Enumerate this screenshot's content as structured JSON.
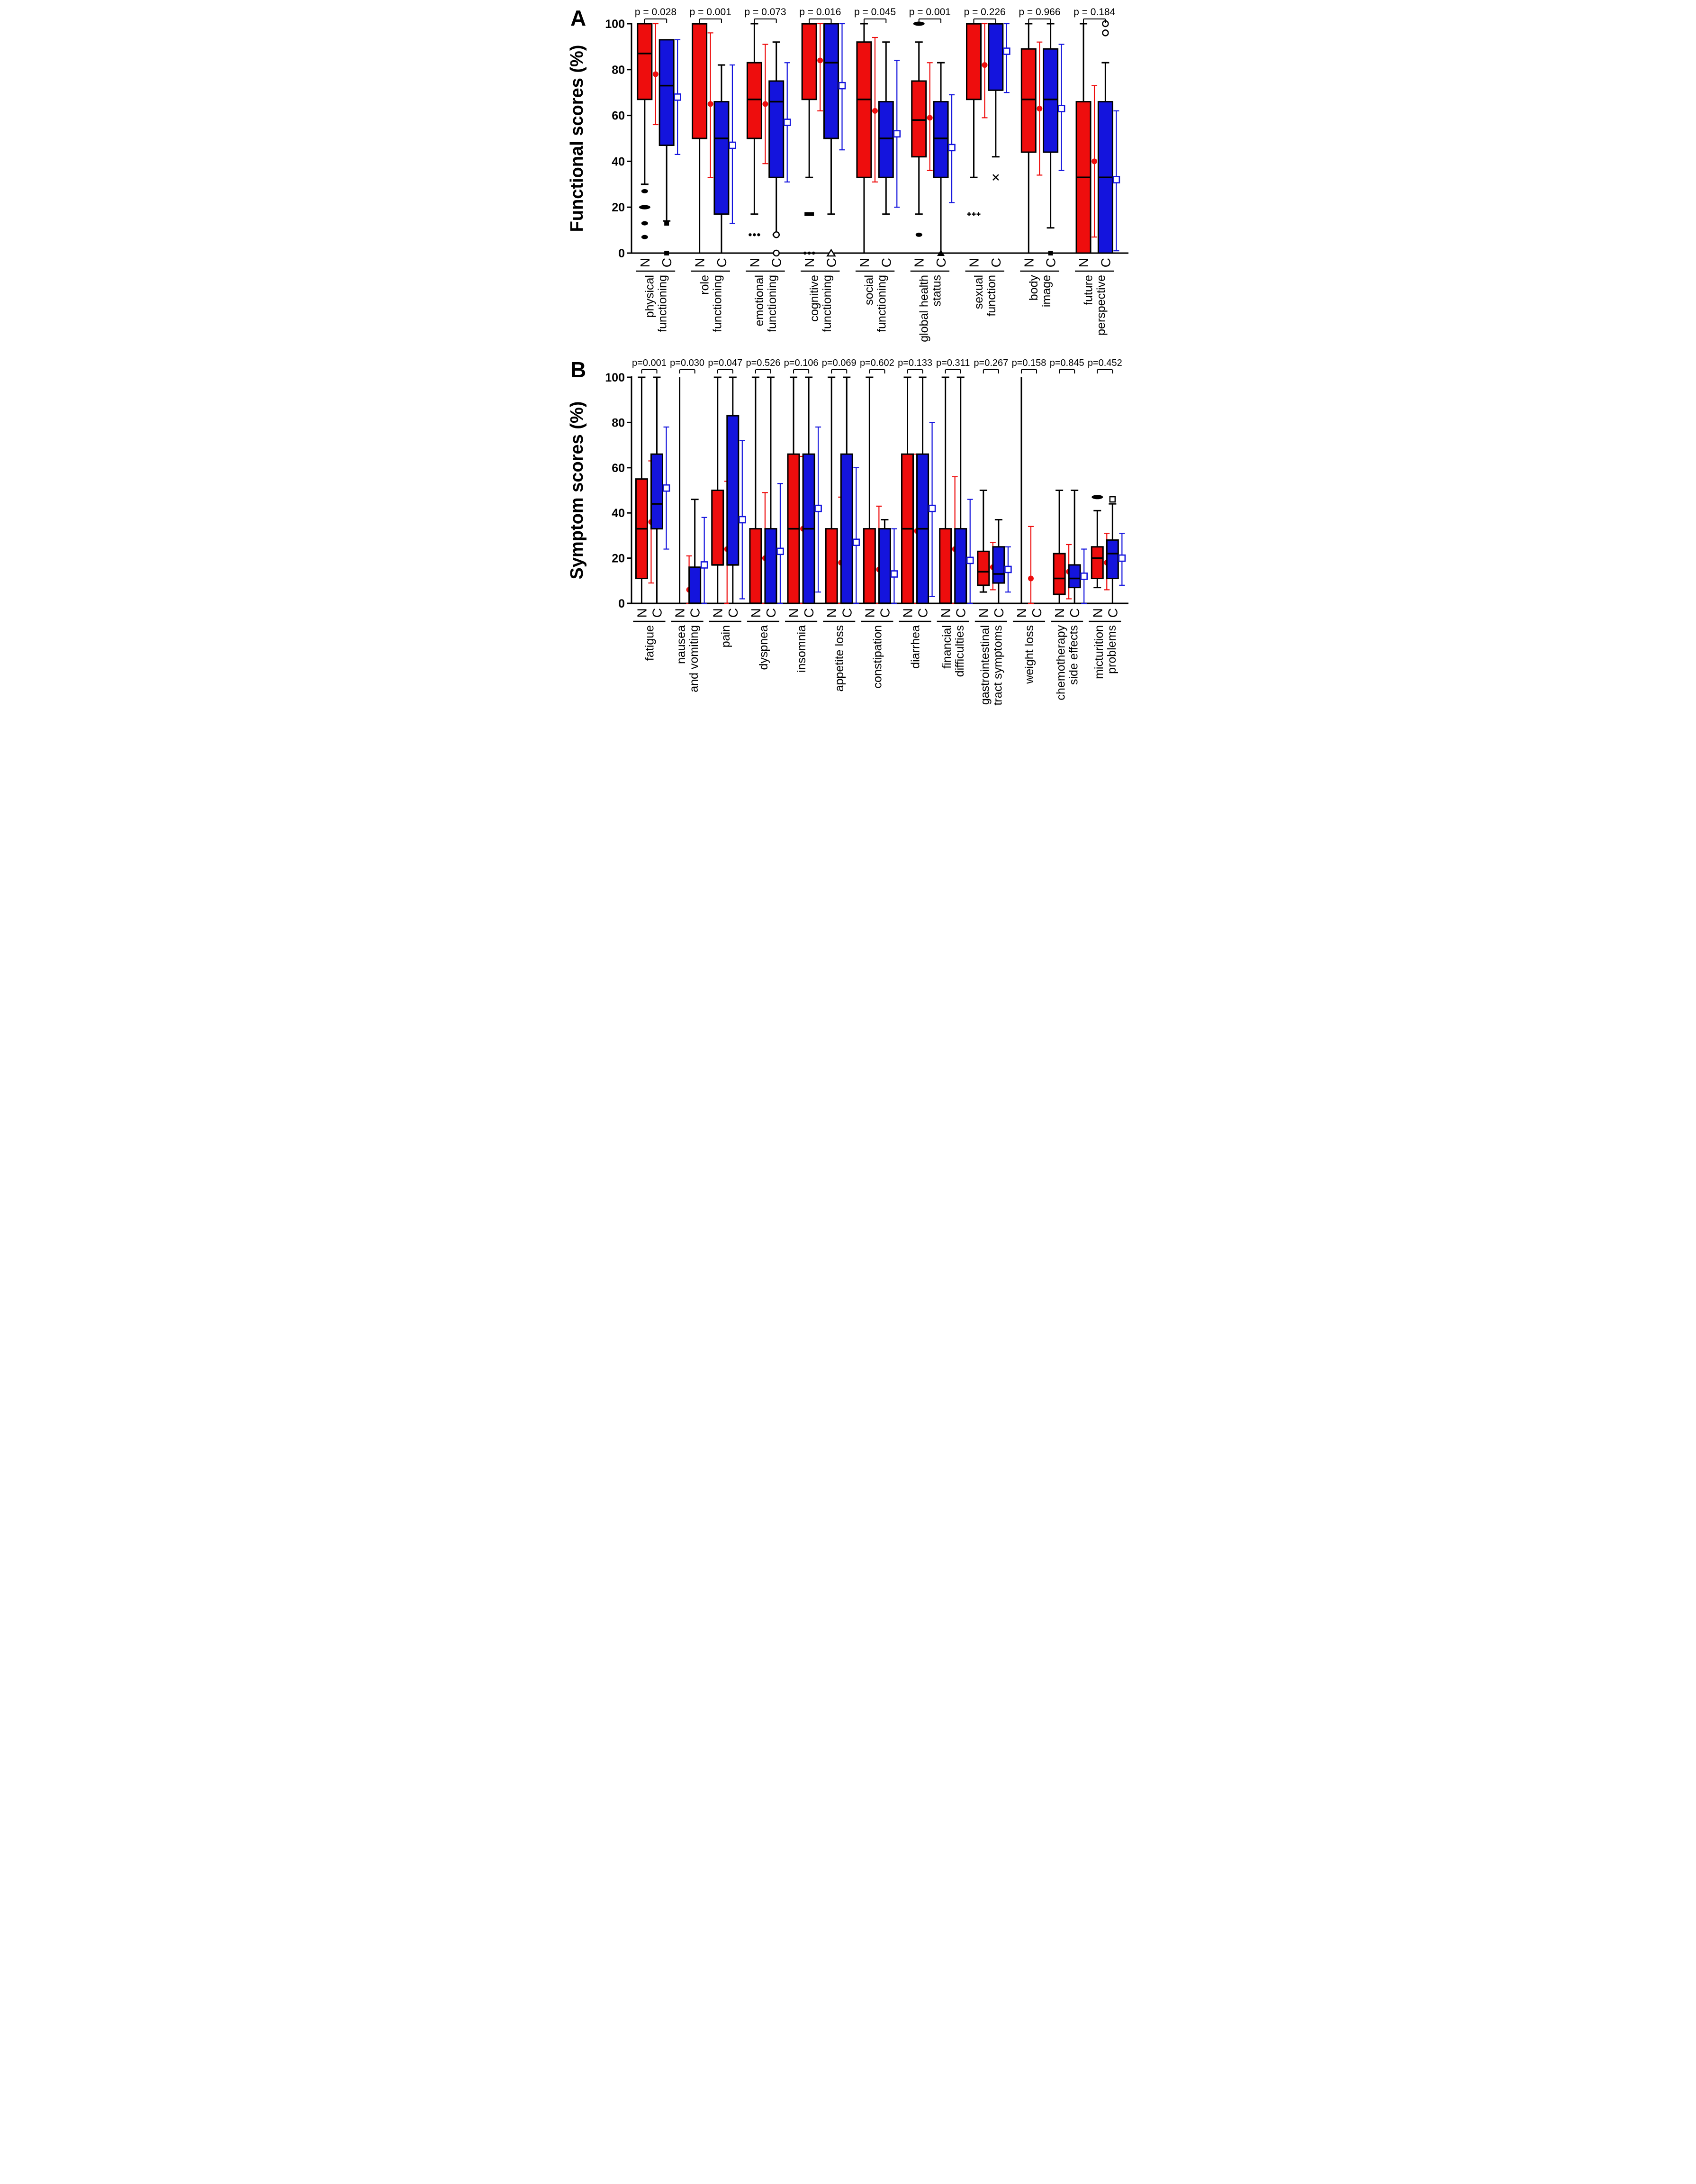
{
  "figure": {
    "background": "#ffffff",
    "panel_a_label": "A",
    "panel_b_label": "B"
  },
  "chart_data": [
    {
      "type": "box",
      "panel": "A",
      "ylabel": "Functional scores (%)",
      "ylim": [
        0,
        100
      ],
      "yticks": [
        0,
        20,
        40,
        60,
        80,
        100
      ],
      "series_labels": [
        "N",
        "C"
      ],
      "colors": {
        "N": "#ee0d0d",
        "C": "#1414dd"
      },
      "legend": "N = red filled box, mean shown as red filled circle with SD bar; C = blue filled box, mean shown as blue open square with SD bar",
      "groups": [
        {
          "name": [
            "physical",
            "functioning"
          ],
          "p": "p = 0.028",
          "N": {
            "lo": 30,
            "q1": 67,
            "med": 87,
            "q3": 100,
            "hi": 100,
            "mean": 78,
            "err": [
              56,
              100
            ],
            "out": [
              [
                27,
                "oval"
              ],
              [
                20,
                "ovalw"
              ],
              [
                13,
                "oval"
              ],
              [
                7,
                "oval"
              ]
            ]
          },
          "C": {
            "lo": 14,
            "q1": 47,
            "med": 73,
            "q3": 93,
            "hi": 93,
            "mean": 68,
            "err": [
              43,
              93
            ],
            "out": [
              [
                13,
                "fsq"
              ],
              [
                0,
                "fsq"
              ]
            ]
          }
        },
        {
          "name": [
            "role",
            "functioning"
          ],
          "p": "p = 0.001",
          "N": {
            "lo": 0,
            "q1": 50,
            "med": 100,
            "q3": 100,
            "hi": 100,
            "mean": 65,
            "err": [
              33,
              96
            ],
            "out": []
          },
          "C": {
            "lo": 0,
            "q1": 17,
            "med": 50,
            "q3": 66,
            "hi": 82,
            "mean": 47,
            "err": [
              13,
              82
            ],
            "out": []
          }
        },
        {
          "name": [
            "emotional",
            "functioning"
          ],
          "p": "p = 0.073",
          "N": {
            "lo": 17,
            "q1": 50,
            "med": 67,
            "q3": 83,
            "hi": 100,
            "mean": 65,
            "err": [
              39,
              91
            ],
            "out": [
              [
                8,
                "dots3"
              ]
            ]
          },
          "C": {
            "lo": 8,
            "q1": 33,
            "med": 66,
            "q3": 75,
            "hi": 92,
            "mean": 57,
            "err": [
              31,
              83
            ],
            "out": [
              [
                8,
                "ocirc"
              ],
              [
                0,
                "ocirc"
              ]
            ]
          }
        },
        {
          "name": [
            "cognitive",
            "functioning"
          ],
          "p": "p = 0.016",
          "N": {
            "lo": 33,
            "q1": 67,
            "med": 100,
            "q3": 100,
            "hi": 100,
            "mean": 84,
            "err": [
              62,
              100
            ],
            "out": [
              [
                17,
                "fsqw"
              ],
              [
                0,
                "dots3"
              ]
            ]
          },
          "C": {
            "lo": 17,
            "q1": 50,
            "med": 83,
            "q3": 100,
            "hi": 100,
            "mean": 73,
            "err": [
              45,
              100
            ],
            "out": [
              [
                0,
                "otri"
              ]
            ]
          }
        },
        {
          "name": [
            "social",
            "functioning"
          ],
          "p": "p = 0.045",
          "N": {
            "lo": 0,
            "q1": 33,
            "med": 67,
            "q3": 92,
            "hi": 100,
            "mean": 62,
            "err": [
              31,
              94
            ],
            "out": []
          },
          "C": {
            "lo": 17,
            "q1": 33,
            "med": 50,
            "q3": 66,
            "hi": 92,
            "mean": 52,
            "err": [
              20,
              84
            ],
            "out": []
          }
        },
        {
          "name": [
            "global health",
            "status"
          ],
          "p": "p = 0.001",
          "N": {
            "lo": 17,
            "q1": 42,
            "med": 58,
            "q3": 75,
            "hi": 92,
            "mean": 59,
            "err": [
              36,
              83
            ],
            "out": [
              [
                100,
                "ovalw"
              ],
              [
                8,
                "oval"
              ]
            ]
          },
          "C": {
            "lo": 0,
            "q1": 33,
            "med": 50,
            "q3": 66,
            "hi": 83,
            "mean": 46,
            "err": [
              22,
              69
            ],
            "out": [
              [
                0,
                "ftri"
              ]
            ]
          }
        },
        {
          "name": [
            "sexual",
            "function"
          ],
          "p": "p = 0.226",
          "N": {
            "lo": 33,
            "q1": 67,
            "med": 100,
            "q3": 100,
            "hi": 100,
            "mean": 82,
            "err": [
              59,
              100
            ],
            "out": [
              [
                17,
                "plus3"
              ]
            ]
          },
          "C": {
            "lo": 42,
            "q1": 71,
            "med": 100,
            "q3": 100,
            "hi": 100,
            "mean": 88,
            "err": [
              70,
              100
            ],
            "out": [
              [
                33,
                "x"
              ]
            ]
          }
        },
        {
          "name": [
            "body",
            "image"
          ],
          "p": "p = 0.966",
          "N": {
            "lo": 0,
            "q1": 44,
            "med": 67,
            "q3": 89,
            "hi": 100,
            "mean": 63,
            "err": [
              34,
              92
            ],
            "out": []
          },
          "C": {
            "lo": 11,
            "q1": 44,
            "med": 67,
            "q3": 89,
            "hi": 100,
            "mean": 63,
            "err": [
              36,
              91
            ],
            "out": [
              [
                0,
                "fsq"
              ]
            ]
          }
        },
        {
          "name": [
            "future",
            "perspective"
          ],
          "p": "p = 0.184",
          "N": {
            "lo": 0,
            "q1": 0,
            "med": 33,
            "q3": 66,
            "hi": 100,
            "mean": 40,
            "err": [
              7,
              73
            ],
            "out": []
          },
          "C": {
            "lo": 0,
            "q1": 0,
            "med": 33,
            "q3": 66,
            "hi": 83,
            "mean": 32,
            "err": [
              1,
              62
            ],
            "out": [
              [
                100,
                "ocirc"
              ],
              [
                96,
                "ocirc"
              ]
            ]
          }
        }
      ]
    },
    {
      "type": "box",
      "panel": "B",
      "ylabel": "Symptom scores (%)",
      "ylim": [
        0,
        100
      ],
      "yticks": [
        0,
        20,
        40,
        60,
        80,
        100
      ],
      "series_labels": [
        "N",
        "C"
      ],
      "colors": {
        "N": "#ee0d0d",
        "C": "#1414dd"
      },
      "legend": "N = red filled box, mean shown as red filled circle with SD bar; C = blue filled box, mean shown as blue open square with SD bar",
      "groups": [
        {
          "name": [
            "fatigue"
          ],
          "p": "p=0.001",
          "N": {
            "lo": 0,
            "q1": 11,
            "med": 33,
            "q3": 55,
            "hi": 100,
            "mean": 36,
            "err": [
              9,
              63
            ],
            "out": []
          },
          "C": {
            "lo": 0,
            "q1": 33,
            "med": 44,
            "q3": 66,
            "hi": 100,
            "mean": 51,
            "err": [
              24,
              78
            ],
            "out": []
          }
        },
        {
          "name": [
            "nausea",
            "and vomiting"
          ],
          "p": "p=0.030",
          "N": {
            "lo": 0,
            "q1": 0,
            "med": 0,
            "q3": 0,
            "hi": 100,
            "mean": 6,
            "err": [
              0,
              21
            ],
            "out": []
          },
          "C": {
            "lo": 0,
            "q1": 0,
            "med": 0,
            "q3": 16,
            "hi": 46,
            "mean": 17,
            "err": [
              0,
              38
            ],
            "out": []
          }
        },
        {
          "name": [
            "pain"
          ],
          "p": "p=0.047",
          "N": {
            "lo": 0,
            "q1": 17,
            "med": 17,
            "q3": 50,
            "hi": 100,
            "mean": 24,
            "err": [
              0,
              54
            ],
            "out": []
          },
          "C": {
            "lo": 0,
            "q1": 17,
            "med": 17,
            "q3": 83,
            "hi": 100,
            "mean": 37,
            "err": [
              2,
              72
            ],
            "out": []
          }
        },
        {
          "name": [
            "dyspnea"
          ],
          "p": "p=0.526",
          "N": {
            "lo": 0,
            "q1": 0,
            "med": 0,
            "q3": 33,
            "hi": 100,
            "mean": 20,
            "err": [
              0,
              49
            ],
            "out": []
          },
          "C": {
            "lo": 0,
            "q1": 0,
            "med": 0,
            "q3": 33,
            "hi": 100,
            "mean": 23,
            "err": [
              0,
              53
            ],
            "out": []
          }
        },
        {
          "name": [
            "insomnia"
          ],
          "p": "p=0.106",
          "N": {
            "lo": 0,
            "q1": 0,
            "med": 33,
            "q3": 66,
            "hi": 100,
            "mean": 33,
            "err": [
              0,
              65
            ],
            "out": []
          },
          "C": {
            "lo": 0,
            "q1": 0,
            "med": 33,
            "q3": 66,
            "hi": 100,
            "mean": 42,
            "err": [
              5,
              78
            ],
            "out": []
          }
        },
        {
          "name": [
            "appetite loss"
          ],
          "p": "p=0.069",
          "N": {
            "lo": 0,
            "q1": 0,
            "med": 0,
            "q3": 33,
            "hi": 100,
            "mean": 18,
            "err": [
              0,
              47
            ],
            "out": []
          },
          "C": {
            "lo": 0,
            "q1": 0,
            "med": 0,
            "q3": 66,
            "hi": 100,
            "mean": 27,
            "err": [
              0,
              60
            ],
            "out": []
          }
        },
        {
          "name": [
            "constipation"
          ],
          "p": "p=0.602",
          "N": {
            "lo": 0,
            "q1": 0,
            "med": 0,
            "q3": 33,
            "hi": 100,
            "mean": 15,
            "err": [
              0,
              43
            ],
            "out": []
          },
          "C": {
            "lo": 0,
            "q1": 0,
            "med": 0,
            "q3": 33,
            "hi": 37,
            "mean": 13,
            "err": [
              0,
              33
            ],
            "out": []
          }
        },
        {
          "name": [
            "diarrhea"
          ],
          "p": "p=0.133",
          "N": {
            "lo": 0,
            "q1": 0,
            "med": 33,
            "q3": 66,
            "hi": 100,
            "mean": 32,
            "err": [
              0,
              66
            ],
            "out": []
          },
          "C": {
            "lo": 0,
            "q1": 0,
            "med": 33,
            "q3": 66,
            "hi": 100,
            "mean": 42,
            "err": [
              3,
              80
            ],
            "out": []
          }
        },
        {
          "name": [
            "financial",
            "difficulties"
          ],
          "p": "p=0.311",
          "N": {
            "lo": 0,
            "q1": 0,
            "med": 0,
            "q3": 33,
            "hi": 100,
            "mean": 24,
            "err": [
              0,
              56
            ],
            "out": []
          },
          "C": {
            "lo": 0,
            "q1": 0,
            "med": 0,
            "q3": 33,
            "hi": 100,
            "mean": 19,
            "err": [
              0,
              46
            ],
            "out": []
          }
        },
        {
          "name": [
            "gastrointestinal",
            "tract symptoms"
          ],
          "p": "p=0.267",
          "N": {
            "lo": 5,
            "q1": 8,
            "med": 14,
            "q3": 23,
            "hi": 50,
            "mean": 16,
            "err": [
              6,
              27
            ],
            "out": []
          },
          "C": {
            "lo": 0,
            "q1": 9,
            "med": 13,
            "q3": 25,
            "hi": 37,
            "mean": 15,
            "err": [
              5,
              25
            ],
            "out": []
          }
        },
        {
          "name": [
            "weight loss"
          ],
          "p": "p=0.158",
          "N": {
            "lo": 0,
            "q1": 0,
            "med": 0,
            "q3": 0,
            "hi": 100,
            "mean": 11,
            "err": [
              0,
              34
            ],
            "out": []
          },
          "C": {
            "lo": 0,
            "q1": 0,
            "med": 0,
            "q3": 0,
            "hi": 0,
            "mean": null,
            "err": null,
            "out": []
          }
        },
        {
          "name": [
            "chemotherapy",
            "side effects"
          ],
          "p": "p=0.845",
          "N": {
            "lo": 0,
            "q1": 4,
            "med": 11,
            "q3": 22,
            "hi": 50,
            "mean": 14,
            "err": [
              2,
              26
            ],
            "out": []
          },
          "C": {
            "lo": 0,
            "q1": 7,
            "med": 11,
            "q3": 17,
            "hi": 50,
            "mean": 12,
            "err": [
              0,
              24
            ],
            "out": []
          }
        },
        {
          "name": [
            "micturition",
            "problems"
          ],
          "p": "p=0.452",
          "N": {
            "lo": 7,
            "q1": 11,
            "med": 20,
            "q3": 25,
            "hi": 41,
            "mean": 18,
            "err": [
              6,
              31
            ],
            "out": [
              [
                47,
                "ovalw"
              ]
            ]
          },
          "C": {
            "lo": 0,
            "q1": 11,
            "med": 22,
            "q3": 28,
            "hi": 44,
            "mean": 20,
            "err": [
              8,
              31
            ],
            "out": [
              [
                46,
                "osq"
              ]
            ]
          }
        }
      ]
    }
  ]
}
